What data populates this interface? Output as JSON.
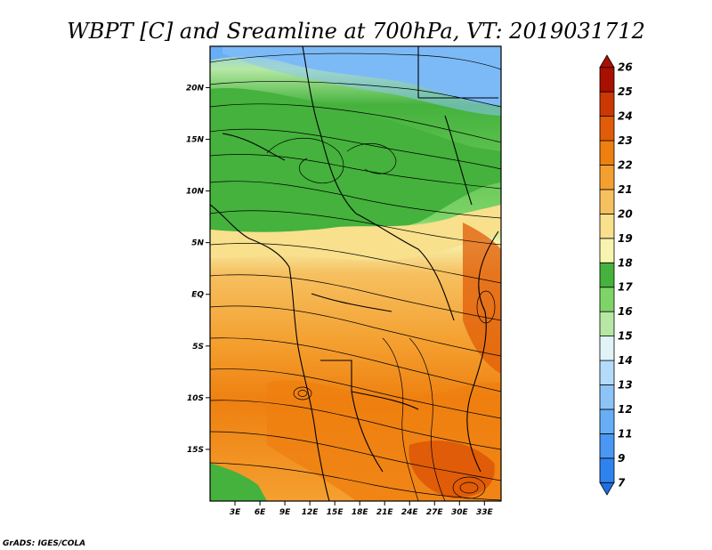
{
  "title": "WBPT [C] and Sreamline at 700hPa, VT: 2019031712",
  "footer": "GrADS: IGES/COLA",
  "map": {
    "lat_labels": [
      "20N",
      "15N",
      "10N",
      "5N",
      "EQ",
      "5S",
      "10S",
      "15S"
    ],
    "lat_values": [
      20,
      15,
      10,
      5,
      0,
      -5,
      -10,
      -15
    ],
    "lon_labels": [
      "3E",
      "6E",
      "9E",
      "12E",
      "15E",
      "18E",
      "21E",
      "24E",
      "27E",
      "30E",
      "33E"
    ],
    "lon_values": [
      3,
      6,
      9,
      12,
      15,
      18,
      21,
      24,
      27,
      30,
      33
    ],
    "lon_range": [
      0,
      35
    ],
    "lat_range": [
      -20,
      24
    ]
  },
  "colorbar": {
    "labels": [
      "7",
      "9",
      "11",
      "12",
      "13",
      "14",
      "15",
      "16",
      "17",
      "18",
      "19",
      "20",
      "21",
      "22",
      "23",
      "24",
      "25",
      "26"
    ],
    "colors": [
      "#1e6fe0",
      "#2f83ee",
      "#4a98f4",
      "#68aef6",
      "#8cc4f8",
      "#b4dcfa",
      "#e0f4f8",
      "#b6e8a4",
      "#7ed468",
      "#44b23c",
      "#f8f4b0",
      "#f8e08c",
      "#f6c060",
      "#f4a030",
      "#ee8010",
      "#e05c08",
      "#cc3804",
      "#a81002"
    ]
  }
}
